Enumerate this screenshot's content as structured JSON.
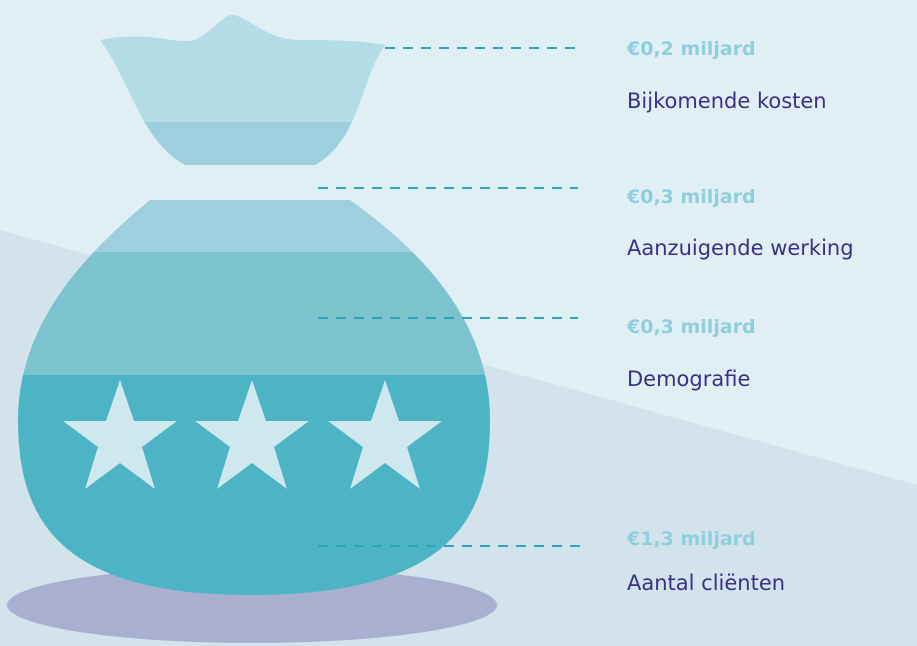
{
  "items": [
    {
      "amount": "€0,2 miljard",
      "label": "Bijkomende kosten"
    },
    {
      "amount": "€0,3 miljard",
      "label": "Aanzuigende werking"
    },
    {
      "amount": "€0,3 miljard",
      "label": "Demografie"
    },
    {
      "amount": "€1,3 miljard",
      "label": "Aantal cliënten"
    }
  ]
}
